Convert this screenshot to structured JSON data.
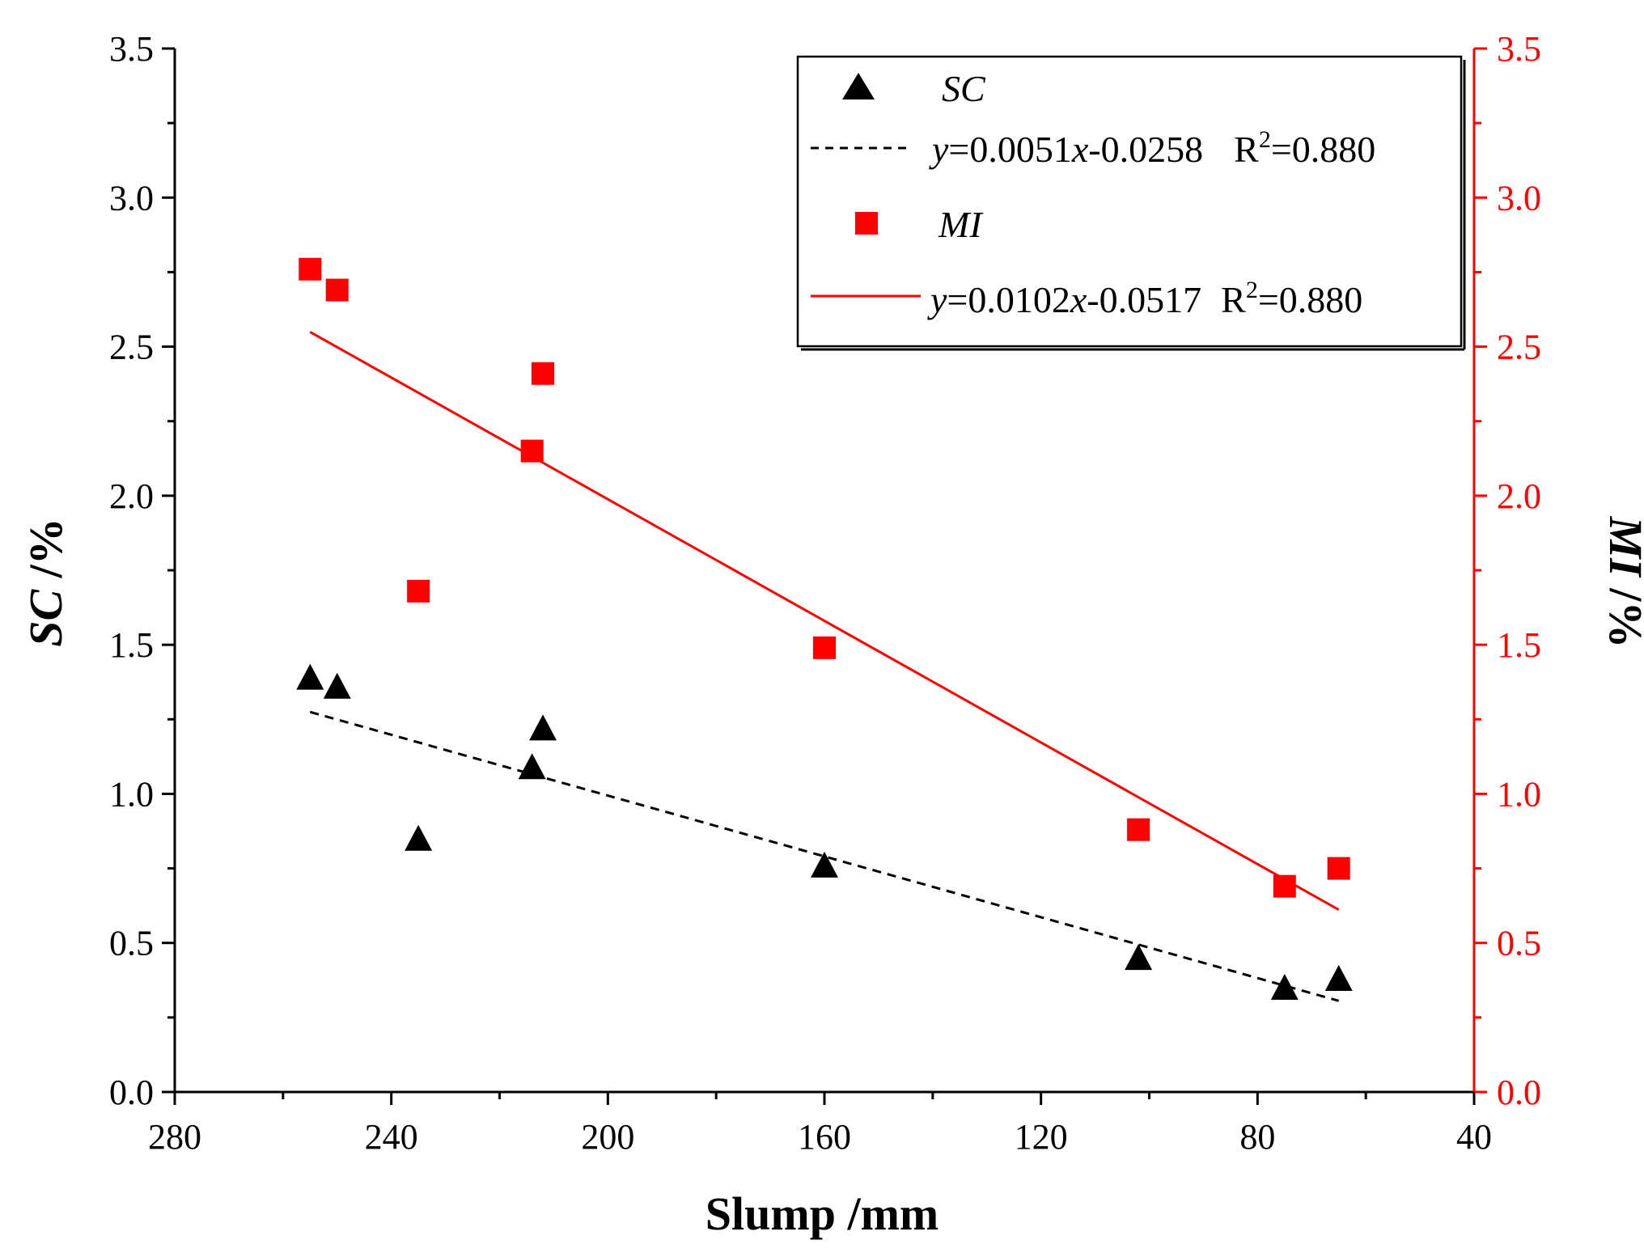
{
  "chart_data": {
    "type": "scatter",
    "xlabel": "Slump /mm",
    "ylabel_left": {
      "var": "SC",
      "unit": " /%"
    },
    "ylabel_right": {
      "var": "MI",
      "unit": " /%"
    },
    "xlim": [
      280,
      40
    ],
    "xticks": [
      280,
      240,
      200,
      160,
      120,
      80,
      40
    ],
    "ylim_left": [
      0,
      3.5
    ],
    "ylim_right": [
      0,
      3.5
    ],
    "yticks": [
      "0.0",
      "0.5",
      "1.0",
      "1.5",
      "2.0",
      "2.5",
      "3.0",
      "3.5"
    ],
    "grid": false,
    "legend_position": "top-right",
    "colors": {
      "SC": "#000000",
      "MI": "#ff0000",
      "right_axis": "#ff0000"
    },
    "series": [
      {
        "name": "SC",
        "axis": "left",
        "marker": "triangle",
        "x": [
          255,
          250,
          235,
          214,
          212,
          160,
          102,
          75,
          65
        ],
        "y": [
          1.39,
          1.36,
          0.85,
          1.09,
          1.22,
          0.76,
          0.45,
          0.35,
          0.38
        ]
      },
      {
        "name": "MI",
        "axis": "right",
        "marker": "square",
        "x": [
          255,
          250,
          235,
          214,
          212,
          160,
          102,
          75,
          65
        ],
        "y": [
          2.76,
          2.69,
          1.68,
          2.15,
          2.41,
          1.49,
          0.88,
          0.69,
          0.75
        ]
      }
    ],
    "fits": [
      {
        "series": "SC",
        "style": "dashed",
        "slope": 0.0051,
        "intercept": -0.0258,
        "x_range": [
          255,
          65
        ],
        "eq_prefix": "y",
        "eq_mid": "=0.0051",
        "eq_var": "x",
        "eq_tail": "-0.0258",
        "r2_label": "R",
        "r2_sup": "2",
        "r2_value": "=0.880"
      },
      {
        "series": "MI",
        "style": "solid",
        "slope": 0.0102,
        "intercept": -0.0517,
        "x_range": [
          255,
          65
        ],
        "eq_prefix": "y",
        "eq_mid": "=0.0102",
        "eq_var": "x",
        "eq_tail": "-0.0517",
        "r2_label": "R",
        "r2_sup": "2",
        "r2_value": "=0.880"
      }
    ]
  }
}
